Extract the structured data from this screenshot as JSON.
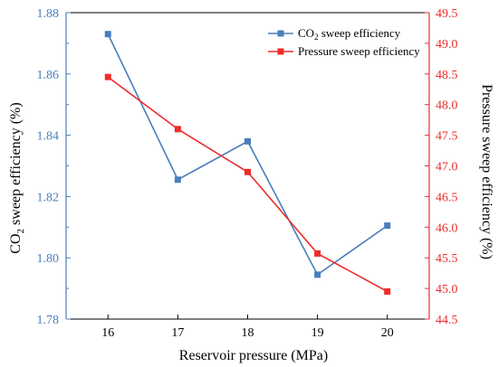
{
  "chart_data": {
    "type": "line",
    "x": [
      16,
      17,
      18,
      19,
      20
    ],
    "xlabel": "Reservoir pressure (MPa)",
    "xlim": [
      15.4,
      20.6
    ],
    "xticks": [
      16,
      17,
      18,
      19,
      20
    ],
    "ylabel_left": {
      "pre": "CO",
      "sub": "2",
      "post": " sweep efficiency (%)"
    },
    "ylabel_right": "Pressure sweep efficiency (%)",
    "ylim_left": [
      1.78,
      1.88
    ],
    "yticks_left": [
      "1.78",
      "1.80",
      "1.82",
      "1.84",
      "1.86",
      "1.88"
    ],
    "ylim_right": [
      44.5,
      49.5
    ],
    "yticks_right": [
      "44.5",
      "45.0",
      "45.5",
      "46.0",
      "46.5",
      "47.0",
      "47.5",
      "48.0",
      "48.5",
      "49.0",
      "49.5"
    ],
    "grid": false,
    "legend_position": "top-right",
    "series": [
      {
        "name": {
          "pre": "CO",
          "sub": "2",
          "post": " sweep efficiency"
        },
        "axis": "left",
        "marker": "square",
        "color": "#4a7ebb",
        "values": [
          1.873,
          1.8255,
          1.838,
          1.7945,
          1.8105
        ]
      },
      {
        "name": {
          "pre": "Pressure sweep efficiency",
          "sub": "",
          "post": ""
        },
        "axis": "right",
        "marker": "square",
        "color": "#ee2c2c",
        "values": [
          48.45,
          47.6,
          46.9,
          45.57,
          44.95
        ]
      }
    ]
  }
}
